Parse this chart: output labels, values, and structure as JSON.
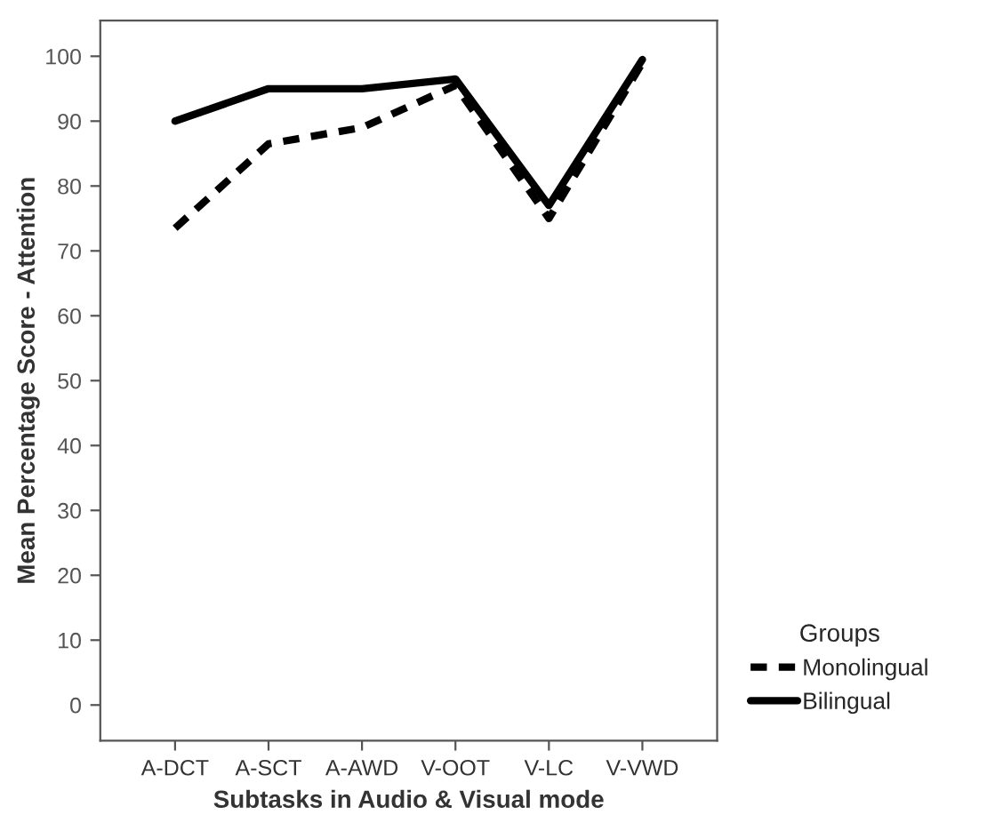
{
  "chart_data": {
    "type": "line",
    "xlabel": "Subtasks in Audio & Visual mode",
    "ylabel": "Mean Percentage Score - Attention",
    "legend_title": "Groups",
    "legend": "right",
    "grid": false,
    "marker": "none",
    "categories": [
      "A-DCT",
      "A-SCT",
      "A-AWD",
      "V-OOT",
      "V-LC",
      "V-VWD"
    ],
    "ylim": [
      -5.5,
      105.5
    ],
    "yticks": [
      0,
      10,
      20,
      30,
      40,
      50,
      60,
      70,
      80,
      90,
      100
    ],
    "series": [
      {
        "name": "Monolingual",
        "color": "#000000",
        "line_style": "dashed",
        "values": [
          73.5,
          86.5,
          89,
          95.5,
          75,
          99
        ]
      },
      {
        "name": "Bilingual",
        "color": "#000000",
        "line_style": "solid",
        "values": [
          90,
          95,
          95,
          96.5,
          77,
          99.5
        ]
      }
    ]
  }
}
